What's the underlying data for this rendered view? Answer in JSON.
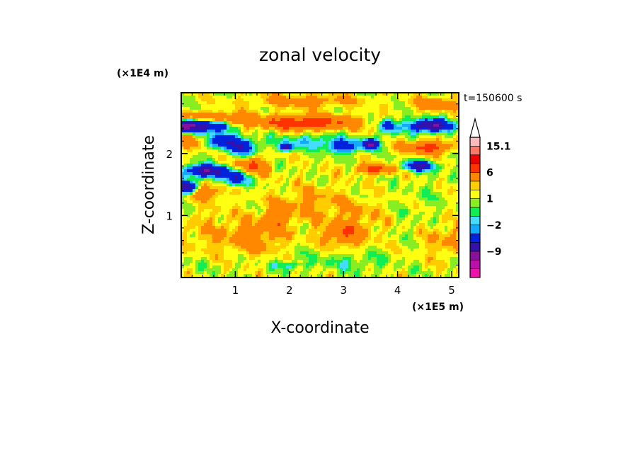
{
  "chart_data": {
    "type": "heatmap",
    "title": "zonal velocity",
    "xlabel": "X-coordinate",
    "ylabel": "Z-coordinate",
    "x_unit": "(×1E5 m)",
    "y_unit": "(×1E4 m)",
    "time_label": "t=150600 s",
    "xlim": [
      0,
      5.13
    ],
    "ylim": [
      0,
      2.98
    ],
    "x_ticks": [
      "1",
      "2",
      "3",
      "4",
      "5"
    ],
    "y_ticks": [
      "1",
      "2"
    ],
    "x_tick_values": [
      1,
      2,
      3,
      4,
      5
    ],
    "y_tick_values": [
      1,
      2
    ],
    "colorbar": {
      "labels": [
        "15.1",
        "6",
        "1",
        "−2",
        "−9"
      ],
      "label_values": [
        15.1,
        6,
        1,
        -2,
        -9
      ],
      "levels": [
        -15,
        -12,
        -9,
        -6,
        -3,
        -2,
        -1,
        0,
        1,
        2,
        3,
        6,
        9,
        12,
        15.1
      ],
      "colors": [
        "#ee11aa",
        "#bb11aa",
        "#881199",
        "#3311aa",
        "#0022dd",
        "#11aaff",
        "#44ddff",
        "#11ee55",
        "#88ee22",
        "#ffff11",
        "#ffcc00",
        "#ff8800",
        "#ff3300",
        "#ee0000",
        "#ff7766",
        "#ffbbbb"
      ]
    },
    "features": [
      {
        "x": 0.1,
        "z": 2.45,
        "sx": 0.35,
        "sz": 0.1,
        "v": -11
      },
      {
        "x": 0.65,
        "z": 2.45,
        "sx": 0.3,
        "sz": 0.1,
        "v": -8
      },
      {
        "x": 0.3,
        "z": 2.6,
        "sx": 0.4,
        "sz": 0.08,
        "v": 4
      },
      {
        "x": 0.9,
        "z": 2.55,
        "sx": 0.35,
        "sz": 0.1,
        "v": 5
      },
      {
        "x": 0.2,
        "z": 2.2,
        "sx": 0.35,
        "sz": 0.12,
        "v": 3
      },
      {
        "x": 0.75,
        "z": 2.2,
        "sx": 0.3,
        "sz": 0.12,
        "v": -7
      },
      {
        "x": 1.15,
        "z": 2.1,
        "sx": 0.25,
        "sz": 0.15,
        "v": -6
      },
      {
        "x": 0.45,
        "z": 1.72,
        "sx": 0.4,
        "sz": 0.1,
        "v": -10
      },
      {
        "x": 1.0,
        "z": 1.6,
        "sx": 0.25,
        "sz": 0.12,
        "v": -7
      },
      {
        "x": 0.1,
        "z": 1.45,
        "sx": 0.2,
        "sz": 0.1,
        "v": -12
      },
      {
        "x": 0.4,
        "z": 1.4,
        "sx": 0.4,
        "sz": 0.12,
        "v": 4
      },
      {
        "x": 1.3,
        "z": 1.8,
        "sx": 0.3,
        "sz": 0.15,
        "v": 5
      },
      {
        "x": 2.3,
        "z": 2.5,
        "sx": 0.9,
        "sz": 0.12,
        "v": 7
      },
      {
        "x": 2.3,
        "z": 2.85,
        "sx": 1.0,
        "sz": 0.1,
        "v": 3
      },
      {
        "x": 2.5,
        "z": 2.2,
        "sx": 0.8,
        "sz": 0.12,
        "v": -3
      },
      {
        "x": 1.95,
        "z": 2.1,
        "sx": 0.12,
        "sz": 0.06,
        "v": -9
      },
      {
        "x": 3.6,
        "z": 1.75,
        "sx": 0.35,
        "sz": 0.08,
        "v": 6
      },
      {
        "x": 3.0,
        "z": 2.1,
        "sx": 0.3,
        "sz": 0.1,
        "v": -5
      },
      {
        "x": 3.5,
        "z": 2.15,
        "sx": 0.15,
        "sz": 0.08,
        "v": -10
      },
      {
        "x": 3.85,
        "z": 2.45,
        "sx": 0.15,
        "sz": 0.12,
        "v": -6
      },
      {
        "x": 4.6,
        "z": 2.45,
        "sx": 0.4,
        "sz": 0.1,
        "v": -11
      },
      {
        "x": 4.55,
        "z": 2.1,
        "sx": 0.45,
        "sz": 0.1,
        "v": 6
      },
      {
        "x": 4.4,
        "z": 1.8,
        "sx": 0.3,
        "sz": 0.08,
        "v": -8
      },
      {
        "x": 4.7,
        "z": 2.8,
        "sx": 0.4,
        "sz": 0.1,
        "v": 4
      },
      {
        "x": 4.5,
        "z": 1.2,
        "sx": 0.6,
        "sz": 0.4,
        "v": -0.5
      },
      {
        "x": 1.4,
        "z": 0.65,
        "sx": 0.5,
        "sz": 0.3,
        "v": 3
      },
      {
        "x": 0.5,
        "z": 0.7,
        "sx": 0.6,
        "sz": 0.4,
        "v": 1.5
      },
      {
        "x": 2.4,
        "z": 1.2,
        "sx": 0.6,
        "sz": 0.3,
        "v": 2
      },
      {
        "x": 3.3,
        "z": 1.0,
        "sx": 0.5,
        "sz": 0.3,
        "v": 1.5
      },
      {
        "x": 2.0,
        "z": 0.3,
        "sx": 1.2,
        "sz": 0.2,
        "v": -0.5
      },
      {
        "x": 3.2,
        "z": 0.25,
        "sx": 0.6,
        "sz": 0.15,
        "v": -1.5
      },
      {
        "x": 2.0,
        "z": 0.2,
        "sx": 0.25,
        "sz": 0.06,
        "v": -2.5
      },
      {
        "x": 3.0,
        "z": 0.7,
        "sx": 0.4,
        "sz": 0.2,
        "v": 4
      },
      {
        "x": 1.8,
        "z": 1.0,
        "sx": 0.25,
        "sz": 0.2,
        "v": 3.5
      },
      {
        "x": 0.2,
        "z": 0.25,
        "sx": 0.6,
        "sz": 0.25,
        "v": -0.5
      },
      {
        "x": 4.9,
        "z": 0.6,
        "sx": 0.4,
        "sz": 0.3,
        "v": 2
      }
    ]
  }
}
